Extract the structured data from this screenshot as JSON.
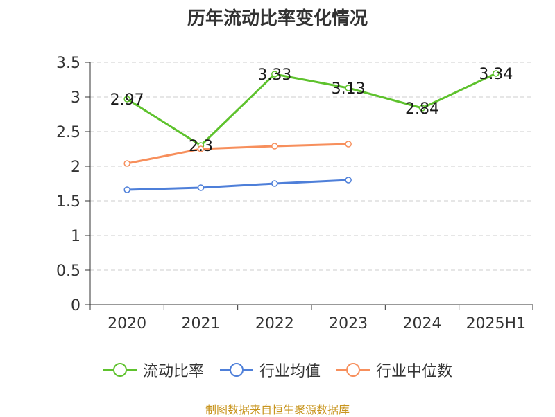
{
  "chart_data": {
    "type": "line",
    "title": "历年流动比率变化情况",
    "categories": [
      "2020",
      "2021",
      "2022",
      "2023",
      "2024",
      "2025H1"
    ],
    "ylim": [
      0,
      3.5
    ],
    "yticks": [
      "0",
      "0.5",
      "1",
      "1.5",
      "2",
      "2.5",
      "3",
      "3.5"
    ],
    "grid": true,
    "legend_position": "bottom",
    "series": [
      {
        "name": "流动比率",
        "color": "#5ec22d",
        "values": [
          2.97,
          2.3,
          3.33,
          3.13,
          2.84,
          3.34
        ],
        "labels": [
          "2.97",
          "2.3",
          "3.33",
          "3.13",
          "2.84",
          "3.34"
        ]
      },
      {
        "name": "行业均值",
        "color": "#4e7fd9",
        "values": [
          1.66,
          1.69,
          1.75,
          1.8,
          null,
          null
        ]
      },
      {
        "name": "行业中位数",
        "color": "#f78f5c",
        "values": [
          2.04,
          2.25,
          2.29,
          2.32,
          null,
          null
        ]
      }
    ]
  },
  "source": "制图数据来自恒生聚源数据库"
}
